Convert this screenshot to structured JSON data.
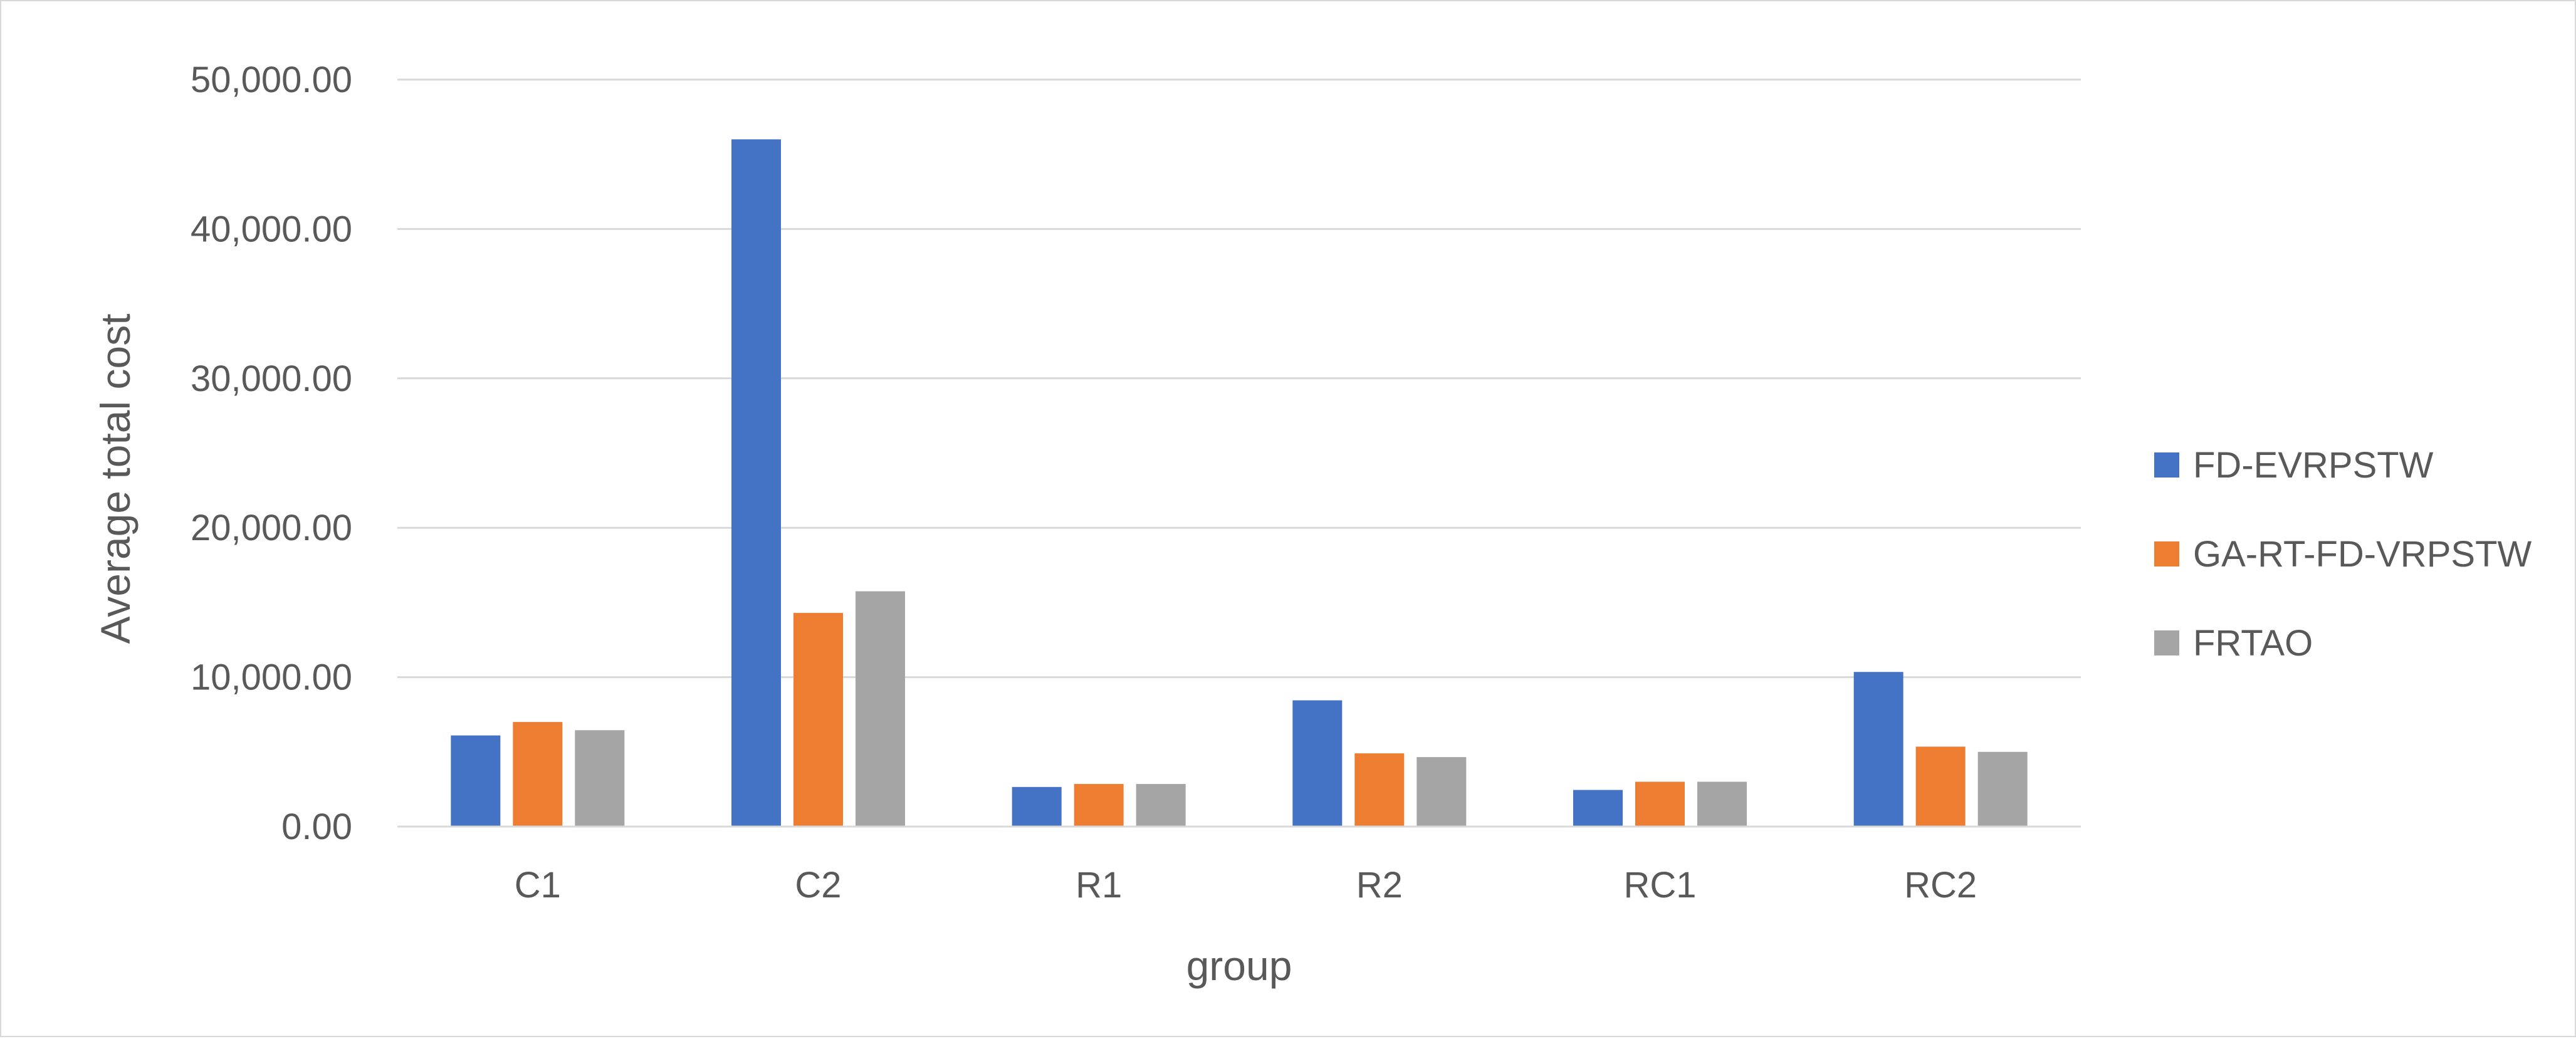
{
  "chart_data": {
    "type": "bar",
    "title": "",
    "xlabel": "group",
    "ylabel": "Average total cost",
    "categories": [
      "C1",
      "C2",
      "R1",
      "R2",
      "RC1",
      "RC2"
    ],
    "series": [
      {
        "name": "FD-EVRPSTW",
        "color": "#4472c4",
        "values": [
          6100,
          46000,
          2650,
          8450,
          2450,
          10350
        ]
      },
      {
        "name": "GA-RT-FD-VRPSTW",
        "color": "#ed7d31",
        "values": [
          7000,
          14300,
          2850,
          4900,
          3000,
          5350
        ]
      },
      {
        "name": "FRTAO",
        "color": "#a5a5a5",
        "values": [
          6450,
          15750,
          2850,
          4650,
          3000,
          5000
        ]
      }
    ],
    "ylim": [
      0,
      50000
    ],
    "yticks": [
      0,
      10000,
      20000,
      30000,
      40000,
      50000
    ],
    "ytick_labels": [
      "0.00",
      "10,000.00",
      "20,000.00",
      "30,000.00",
      "40,000.00",
      "50,000.00"
    ],
    "grid": true,
    "legend_position": "right"
  }
}
